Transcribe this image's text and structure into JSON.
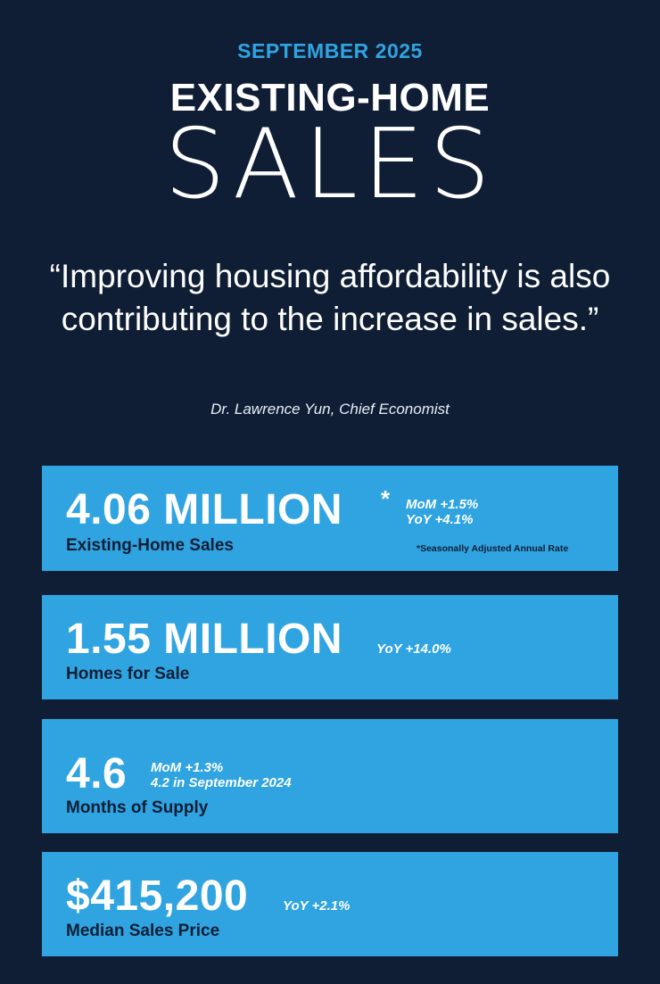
{
  "header": {
    "month": "SEPTEMBER 2025",
    "title_top": "EXISTING-HOME",
    "title_big": "SALES"
  },
  "quote": {
    "text": "“Improving housing affordability is also contributing to the increase in sales.”",
    "attribution": "Dr. Lawrence Yun, Chief Economist"
  },
  "stats": {
    "sales": {
      "value": "4.06 MILLION",
      "asterisk": "*",
      "mom": "MoM +1.5%",
      "yoy": "YoY +4.1%",
      "label": "Existing-Home Sales",
      "footnote": "*Seasonally Adjusted Annual Rate"
    },
    "inventory": {
      "value": "1.55 MILLION",
      "yoy": "YoY +14.0%",
      "label": "Homes for Sale"
    },
    "supply": {
      "value": "4.6",
      "mom": "MoM +1.3%",
      "prior": "4.2 in September 2024",
      "label": "Months of Supply"
    },
    "price": {
      "value": "$415,200",
      "yoy": "YoY +2.1%",
      "label": "Median Sales Price"
    }
  },
  "colors": {
    "background": "#0f1e35",
    "accent": "#2fa4e1",
    "text": "#ffffff"
  }
}
